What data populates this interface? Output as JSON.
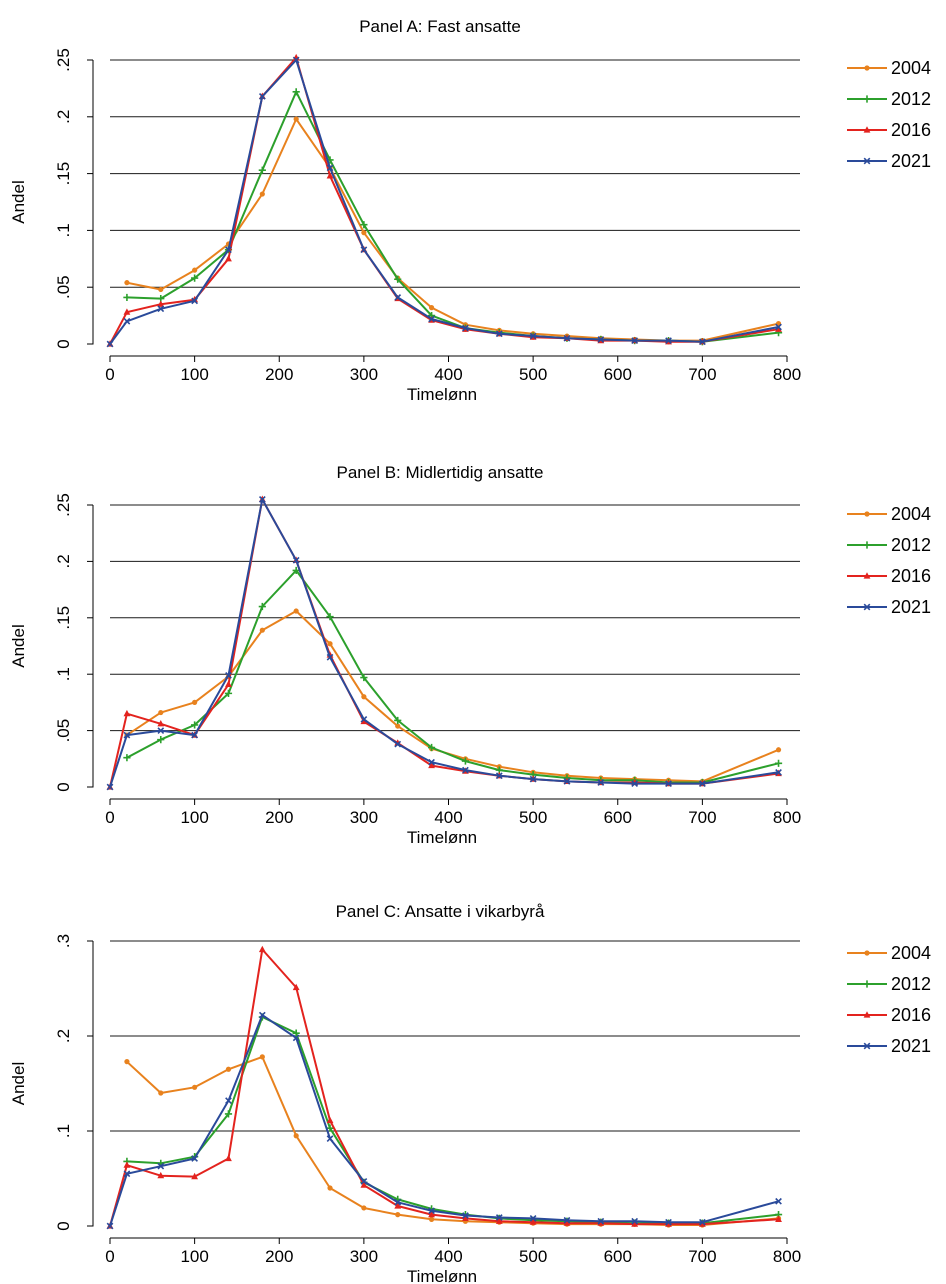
{
  "chart_data": [
    {
      "type": "line",
      "title": "Panel A: Fast ansatte",
      "xlabel": "Timelønn",
      "ylabel": "Andel",
      "xlim": [
        0,
        800
      ],
      "ylim": [
        0,
        0.25
      ],
      "xticks": [
        0,
        100,
        200,
        300,
        400,
        500,
        600,
        700,
        800
      ],
      "xtick_labels": [
        "0",
        "100",
        "200",
        "300",
        "400",
        "500",
        "600",
        "700",
        "800"
      ],
      "yticks": [
        0,
        0.05,
        0.1,
        0.15,
        0.2,
        0.25
      ],
      "ytick_labels": [
        "0",
        ".05",
        ".1",
        ".15",
        ".2",
        ".25"
      ],
      "grid": "horizontal",
      "legend": "right",
      "x": [
        0,
        20,
        60,
        100,
        140,
        180,
        220,
        260,
        300,
        340,
        380,
        420,
        460,
        500,
        540,
        580,
        620,
        660,
        700,
        790
      ],
      "series": [
        {
          "name": "2004",
          "color": "#E8821E",
          "marker": "dot",
          "values": [
            null,
            0.054,
            0.048,
            0.065,
            0.088,
            0.132,
            0.198,
            0.155,
            0.098,
            0.058,
            0.032,
            0.017,
            0.012,
            0.009,
            0.007,
            0.005,
            0.004,
            0.003,
            0.003,
            0.018
          ]
        },
        {
          "name": "2012",
          "color": "#2CA02C",
          "marker": "plus",
          "values": [
            null,
            0.041,
            0.04,
            0.058,
            0.083,
            0.153,
            0.222,
            0.162,
            0.105,
            0.057,
            0.025,
            0.014,
            0.01,
            0.007,
            0.005,
            0.004,
            0.003,
            0.003,
            0.002,
            0.01
          ]
        },
        {
          "name": "2016",
          "color": "#E3231E",
          "marker": "triangle",
          "values": [
            0.0,
            0.028,
            0.035,
            0.039,
            0.075,
            0.218,
            0.252,
            0.148,
            0.083,
            0.04,
            0.021,
            0.013,
            0.009,
            0.006,
            0.005,
            0.003,
            0.003,
            0.002,
            0.002,
            0.013
          ]
        },
        {
          "name": "2021",
          "color": "#2A4A9A",
          "marker": "x",
          "values": [
            0.0,
            0.02,
            0.031,
            0.038,
            0.083,
            0.218,
            0.25,
            0.155,
            0.083,
            0.041,
            0.022,
            0.014,
            0.009,
            0.007,
            0.005,
            0.004,
            0.003,
            0.003,
            0.002,
            0.015
          ]
        }
      ]
    },
    {
      "type": "line",
      "title": "Panel B: Midlertidig ansatte",
      "xlabel": "Timelønn",
      "ylabel": "Andel",
      "xlim": [
        0,
        800
      ],
      "ylim": [
        0,
        0.25
      ],
      "xticks": [
        0,
        100,
        200,
        300,
        400,
        500,
        600,
        700,
        800
      ],
      "xtick_labels": [
        "0",
        "100",
        "200",
        "300",
        "400",
        "500",
        "600",
        "700",
        "800"
      ],
      "yticks": [
        0,
        0.05,
        0.1,
        0.15,
        0.2,
        0.25
      ],
      "ytick_labels": [
        "0",
        ".05",
        ".1",
        ".15",
        ".2",
        ".25"
      ],
      "grid": "horizontal",
      "legend": "right",
      "x": [
        0,
        20,
        60,
        100,
        140,
        180,
        220,
        260,
        300,
        340,
        380,
        420,
        460,
        500,
        540,
        580,
        620,
        660,
        700,
        790
      ],
      "series": [
        {
          "name": "2004",
          "color": "#E8821E",
          "marker": "dot",
          "values": [
            null,
            0.046,
            0.066,
            0.075,
            0.098,
            0.139,
            0.156,
            0.127,
            0.08,
            0.054,
            0.034,
            0.025,
            0.018,
            0.013,
            0.01,
            0.008,
            0.007,
            0.006,
            0.005,
            0.033
          ]
        },
        {
          "name": "2012",
          "color": "#2CA02C",
          "marker": "plus",
          "values": [
            null,
            0.026,
            0.042,
            0.055,
            0.083,
            0.16,
            0.192,
            0.151,
            0.097,
            0.059,
            0.035,
            0.023,
            0.015,
            0.011,
            0.008,
            0.006,
            0.006,
            0.004,
            0.004,
            0.021
          ]
        },
        {
          "name": "2016",
          "color": "#E3231E",
          "marker": "triangle",
          "values": [
            0.0,
            0.065,
            0.056,
            0.046,
            0.091,
            0.255,
            0.201,
            0.117,
            0.058,
            0.039,
            0.019,
            0.014,
            0.01,
            0.007,
            0.005,
            0.004,
            0.004,
            0.003,
            0.003,
            0.012
          ]
        },
        {
          "name": "2021",
          "color": "#2A4A9A",
          "marker": "x",
          "values": [
            0.0,
            0.046,
            0.05,
            0.046,
            0.099,
            0.255,
            0.201,
            0.115,
            0.06,
            0.038,
            0.022,
            0.015,
            0.01,
            0.007,
            0.005,
            0.004,
            0.003,
            0.003,
            0.003,
            0.013
          ]
        }
      ]
    },
    {
      "type": "line",
      "title": "Panel C: Ansatte i vikarbyrå",
      "xlabel": "Timelønn",
      "ylabel": "Andel",
      "xlim": [
        0,
        800
      ],
      "ylim": [
        0,
        0.3
      ],
      "xticks": [
        0,
        100,
        200,
        300,
        400,
        500,
        600,
        700,
        800
      ],
      "xtick_labels": [
        "0",
        "100",
        "200",
        "300",
        "400",
        "500",
        "600",
        "700",
        "800"
      ],
      "yticks": [
        0,
        0.1,
        0.2,
        0.3
      ],
      "ytick_labels": [
        "0",
        ".1",
        ".2",
        ".3"
      ],
      "grid": "horizontal",
      "legend": "right",
      "x": [
        0,
        20,
        60,
        100,
        140,
        180,
        220,
        260,
        300,
        340,
        380,
        420,
        460,
        500,
        540,
        580,
        620,
        660,
        700,
        790
      ],
      "series": [
        {
          "name": "2004",
          "color": "#E8821E",
          "marker": "dot",
          "values": [
            null,
            0.173,
            0.14,
            0.146,
            0.165,
            0.178,
            0.095,
            0.04,
            0.019,
            0.012,
            0.007,
            0.005,
            0.004,
            0.003,
            0.002,
            0.002,
            0.002,
            0.001,
            0.001,
            0.008
          ]
        },
        {
          "name": "2012",
          "color": "#2CA02C",
          "marker": "plus",
          "values": [
            null,
            0.068,
            0.066,
            0.073,
            0.118,
            0.22,
            0.203,
            0.103,
            0.046,
            0.028,
            0.018,
            0.012,
            0.008,
            0.006,
            0.005,
            0.004,
            0.003,
            0.003,
            0.003,
            0.012
          ]
        },
        {
          "name": "2016",
          "color": "#E3231E",
          "marker": "triangle",
          "values": [
            0.0,
            0.064,
            0.053,
            0.052,
            0.071,
            0.291,
            0.251,
            0.111,
            0.043,
            0.021,
            0.012,
            0.008,
            0.005,
            0.004,
            0.003,
            0.003,
            0.002,
            0.002,
            0.002,
            0.007
          ]
        },
        {
          "name": "2021",
          "color": "#2A4A9A",
          "marker": "x",
          "values": [
            0.0,
            0.055,
            0.063,
            0.071,
            0.132,
            0.222,
            0.198,
            0.092,
            0.047,
            0.025,
            0.016,
            0.011,
            0.009,
            0.008,
            0.006,
            0.005,
            0.005,
            0.004,
            0.004,
            0.026
          ]
        }
      ]
    }
  ]
}
